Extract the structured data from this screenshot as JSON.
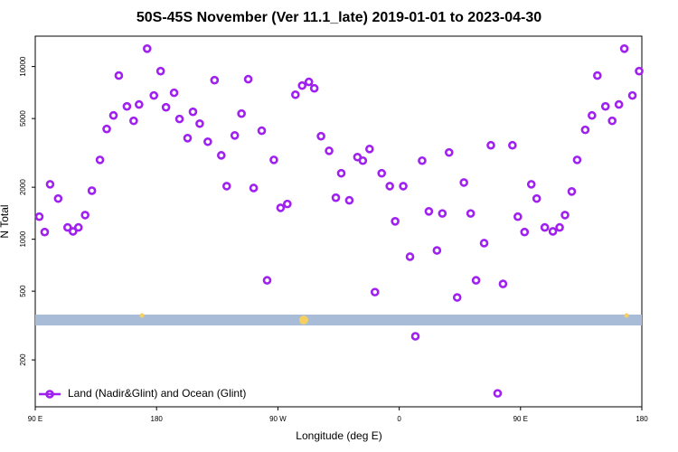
{
  "chart_data": {
    "type": "scatter",
    "title": "50S-45S November (Ver 11.1_late)   2019-01-01 to 2023-04-30",
    "xlabel": "Longitude (deg E)",
    "ylabel": "N Total",
    "log_y": true,
    "xlim": [
      90,
      540
    ],
    "ylim": [
      107,
      15000
    ],
    "xticks": [
      {
        "value": 90,
        "label": "90 E"
      },
      180,
      {
        "value": 270,
        "label": "90 W"
      },
      {
        "value": 360,
        "label": "0"
      },
      {
        "value": 450,
        "label": "90 E"
      },
      {
        "value": 540,
        "label": "180"
      }
    ],
    "yticks": [
      200,
      500,
      1000,
      2000,
      5000,
      10000
    ],
    "legend": "bottom-left",
    "series": [
      {
        "name": "Land (Nadir&Glint) and Ocean (Glint)",
        "color": "#a020f0",
        "x": [
          93,
          97,
          101,
          107,
          114,
          118,
          122,
          127,
          132,
          138,
          143,
          148,
          152,
          158,
          163,
          167,
          173,
          178,
          183,
          187,
          193,
          197,
          203,
          207,
          212,
          218,
          223,
          228,
          232,
          238,
          243,
          248,
          252,
          258,
          262,
          267,
          272,
          277,
          283,
          288,
          293,
          297,
          302,
          308,
          313,
          317,
          323,
          329,
          333,
          338,
          342,
          347,
          353,
          357,
          363,
          368,
          372,
          377,
          382,
          388,
          392,
          397,
          403,
          408,
          413,
          417,
          423,
          428,
          433,
          437,
          444,
          448,
          453,
          458,
          462,
          468,
          474,
          479,
          483,
          488,
          492,
          498,
          503,
          507,
          513,
          518,
          523,
          527,
          533,
          538
        ],
        "values": [
          1350,
          1100,
          2080,
          1720,
          1170,
          1110,
          1170,
          1380,
          1910,
          2880,
          4350,
          5210,
          8870,
          5880,
          4850,
          6030,
          12700,
          6800,
          9410,
          5810,
          7050,
          4970,
          3850,
          5470,
          4670,
          3670,
          8340,
          3060,
          2030,
          3990,
          5340,
          8450,
          1980,
          4250,
          578,
          2880,
          1520,
          1600,
          6870,
          7760,
          8150,
          7480,
          3950,
          3250,
          1740,
          2410,
          1680,
          2990,
          2850,
          3330,
          494,
          2410,
          2030,
          1270,
          2030,
          792,
          274,
          2850,
          1450,
          861,
          1410,
          3180,
          460,
          2130,
          1410,
          578,
          949,
          3500,
          128,
          551,
          3500,
          1350,
          1100,
          2080,
          1720,
          1170,
          1110,
          1170,
          1380,
          1890,
          2880,
          4300,
          5210,
          8870,
          5880,
          4850,
          6030,
          12700,
          6800,
          9410
        ]
      }
    ]
  }
}
